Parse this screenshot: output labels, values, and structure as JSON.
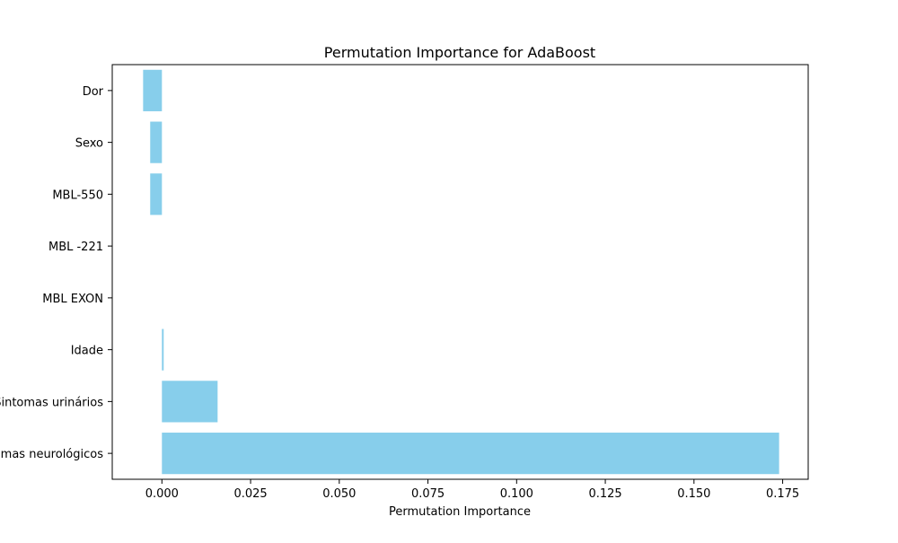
{
  "chart_data": {
    "type": "bar",
    "orientation": "horizontal",
    "title": "Permutation Importance for AdaBoost",
    "xlabel": "Permutation Importance",
    "ylabel": "",
    "categories": [
      "Dor",
      "Sexo",
      "MBL-550",
      "MBL -221",
      "MBL EXON",
      "Idade",
      "Sintomas urinários",
      "Sintomas neurológicos"
    ],
    "values": [
      -0.0053,
      -0.0033,
      -0.0033,
      0.0,
      0.0,
      0.0005,
      0.0157,
      0.174
    ],
    "xlim": [
      -0.014,
      0.1822
    ],
    "xticks": [
      0.0,
      0.025,
      0.05,
      0.075,
      0.1,
      0.125,
      0.15,
      0.175
    ],
    "xtick_labels": [
      "0.000",
      "0.025",
      "0.050",
      "0.075",
      "0.100",
      "0.125",
      "0.150",
      "0.175"
    ],
    "bar_color": "#87ceeb",
    "grid": false,
    "legend": "none"
  }
}
